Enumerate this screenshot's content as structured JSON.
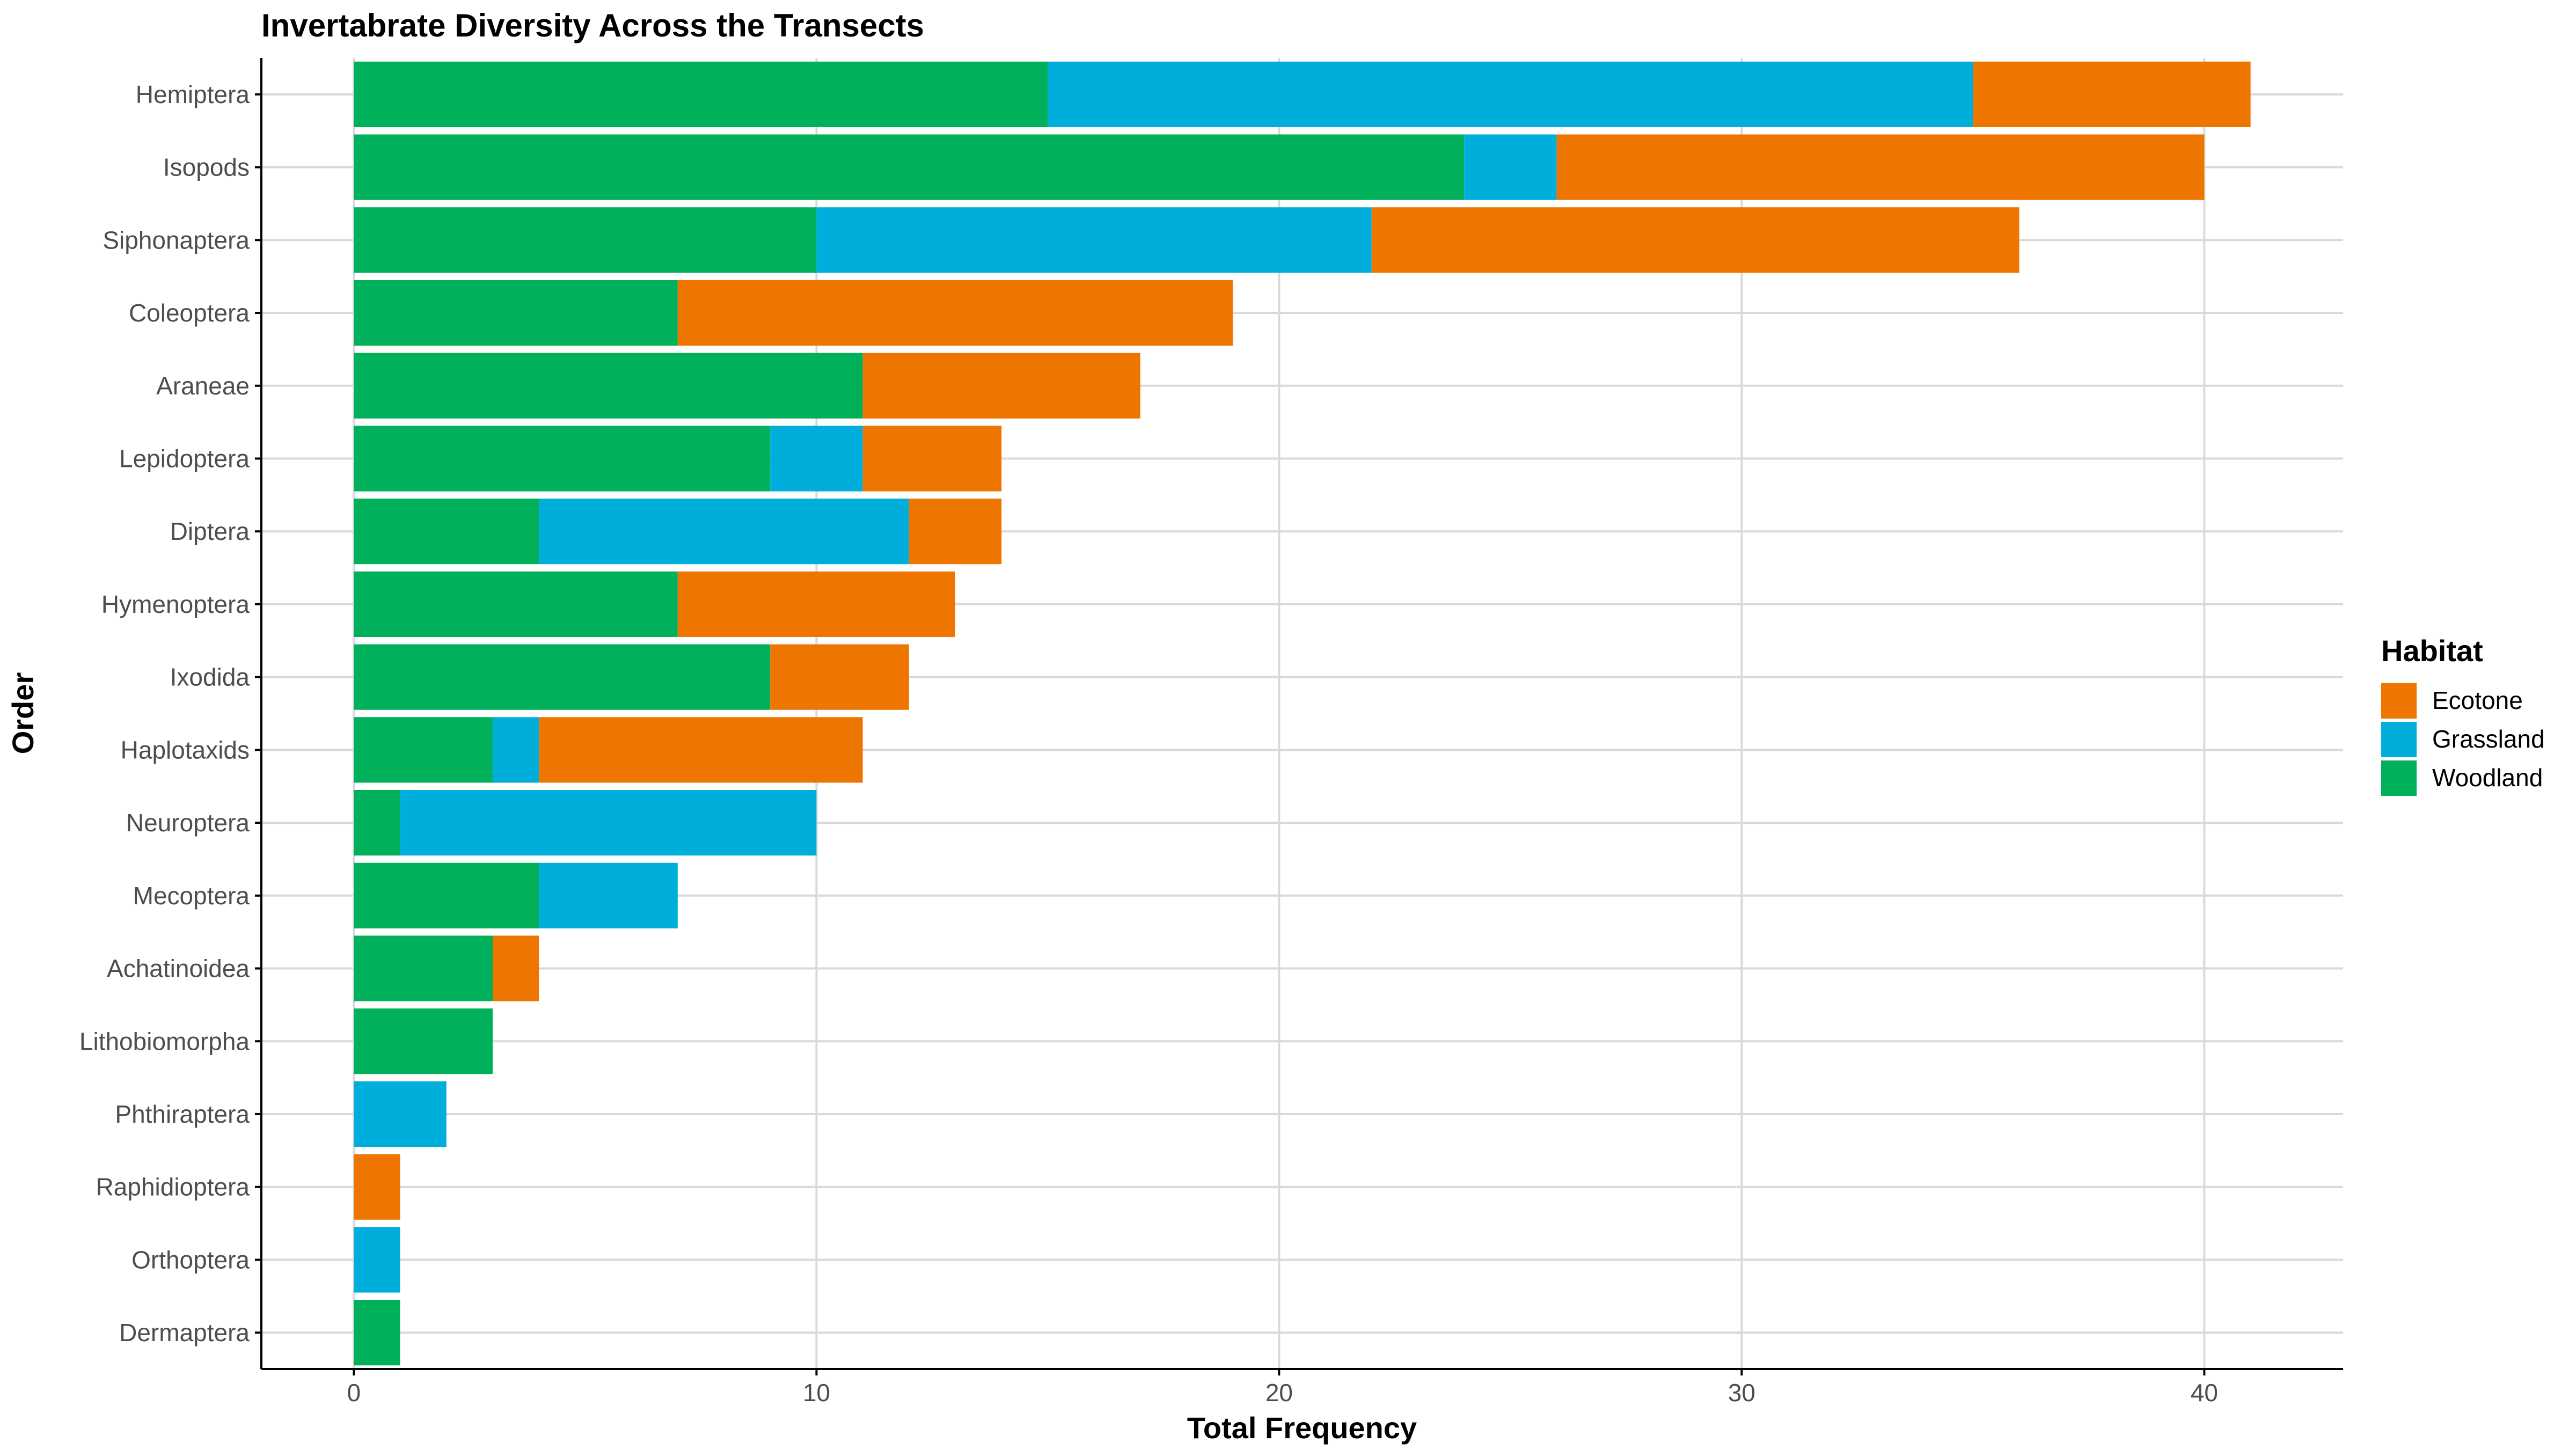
{
  "chart_data": {
    "type": "bar",
    "orientation": "horizontal",
    "stacked": true,
    "title": "Invertabrate Diversity Across the Transects",
    "xlabel": "Total Frequency",
    "ylabel": "Order",
    "xlim": [
      -2,
      43
    ],
    "x_ticks": [
      0,
      10,
      20,
      30,
      40
    ],
    "grid": true,
    "legend_position": "right",
    "legend_title": "Habitat",
    "legend": [
      {
        "name": "Ecotone",
        "color": "#EE7600"
      },
      {
        "name": "Grassland",
        "color": "#00AEDB"
      },
      {
        "name": "Woodland",
        "color": "#00B05A"
      }
    ],
    "stack_order": [
      "Woodland",
      "Grassland",
      "Ecotone"
    ],
    "categories": [
      "Hemiptera",
      "Isopods",
      "Siphonaptera",
      "Coleoptera",
      "Araneae",
      "Lepidoptera",
      "Diptera",
      "Hymenoptera",
      "Ixodida",
      "Haplotaxids",
      "Neuroptera",
      "Mecoptera",
      "Achatinoidea",
      "Lithobiomorpha",
      "Phthiraptera",
      "Raphidioptera",
      "Orthoptera",
      "Dermaptera"
    ],
    "series": [
      {
        "name": "Woodland",
        "color": "#00B05A",
        "values": [
          15,
          24,
          10,
          7,
          11,
          9,
          4,
          7,
          9,
          3,
          1,
          4,
          3,
          3,
          0,
          0,
          0,
          1
        ]
      },
      {
        "name": "Grassland",
        "color": "#00AEDB",
        "values": [
          20,
          2,
          12,
          0,
          0,
          2,
          8,
          0,
          0,
          1,
          9,
          3,
          0,
          0,
          2,
          0,
          1,
          0
        ]
      },
      {
        "name": "Ecotone",
        "color": "#EE7600",
        "values": [
          6,
          14,
          14,
          12,
          6,
          3,
          2,
          6,
          3,
          7,
          0,
          0,
          1,
          0,
          0,
          1,
          0,
          0
        ]
      }
    ]
  }
}
